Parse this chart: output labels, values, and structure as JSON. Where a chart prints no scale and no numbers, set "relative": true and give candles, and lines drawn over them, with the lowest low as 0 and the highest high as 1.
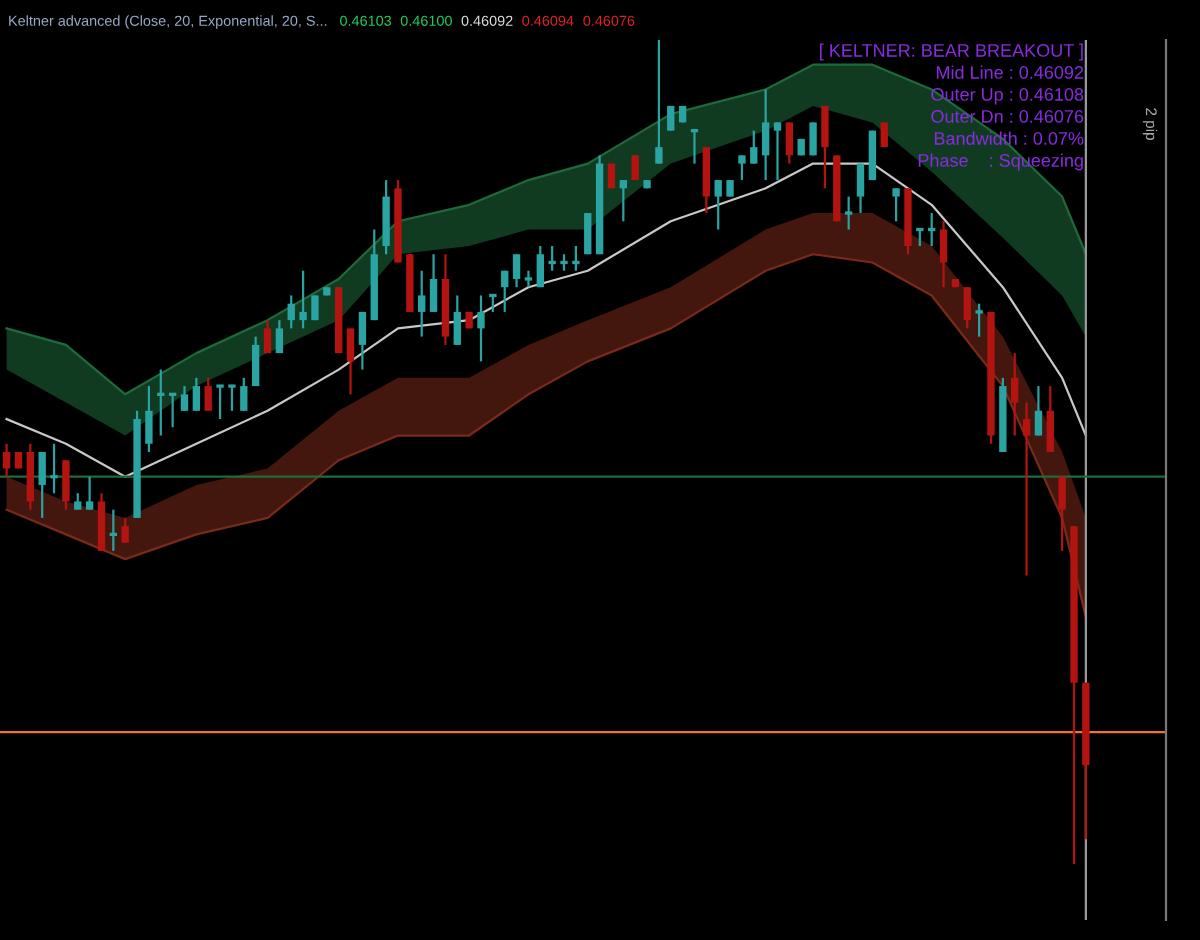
{
  "chart_data": {
    "type": "candlestick",
    "relative": true,
    "title": "Keltner advanced (Close, 20, Exponential, 20, S...",
    "annotations": [
      "0.46103",
      "0.46100",
      "0.46092",
      "0.46094",
      "0.46076",
      "[ KELTNER: BEAR BREAKOUT ]",
      "Mid Line : 0.46092",
      "Outer Up : 0.46108",
      "Outer Dn : 0.46076",
      "Bandwidth : 0.07%",
      "Phase    : Squeezing",
      "2 pip"
    ],
    "categories": [
      null,
      null,
      null,
      null,
      null,
      null,
      null,
      null,
      null,
      null,
      null,
      null,
      null,
      null,
      null,
      null,
      null,
      null,
      null,
      null,
      null,
      null,
      null,
      null,
      null,
      null,
      null,
      null,
      null,
      null,
      null,
      null,
      null,
      null,
      null,
      null,
      null,
      null,
      null,
      null,
      null,
      null,
      null,
      null,
      null,
      null,
      null,
      null,
      null,
      null,
      null,
      null,
      null,
      null,
      null,
      null,
      null,
      null,
      null,
      null,
      null,
      null,
      null,
      null,
      null,
      null,
      null,
      null,
      null,
      null,
      null,
      null,
      null,
      null,
      null,
      null,
      null,
      null,
      null,
      null,
      null,
      null,
      null,
      null,
      null,
      null,
      null,
      null,
      null,
      null,
      null,
      null
    ],
    "ohlc": [
      [
        0.5,
        0.51,
        0.47,
        0.48
      ],
      [
        0.5,
        0.5,
        0.48,
        0.48
      ],
      [
        0.5,
        0.51,
        0.43,
        0.44
      ],
      [
        0.46,
        0.5,
        0.42,
        0.5
      ],
      [
        0.47,
        0.51,
        0.45,
        0.47
      ],
      [
        0.49,
        0.49,
        0.43,
        0.44
      ],
      [
        0.43,
        0.45,
        0.43,
        0.44
      ],
      [
        0.43,
        0.47,
        0.43,
        0.44
      ],
      [
        0.44,
        0.45,
        0.38,
        0.38
      ],
      [
        0.4,
        0.43,
        0.38,
        0.4
      ],
      [
        0.41,
        0.42,
        0.39,
        0.39
      ],
      [
        0.42,
        0.55,
        0.42,
        0.54
      ],
      [
        0.51,
        0.58,
        0.5,
        0.55
      ],
      [
        0.57,
        0.6,
        0.52,
        0.57
      ],
      [
        0.57,
        0.57,
        0.53,
        0.57
      ],
      [
        0.55,
        0.58,
        0.55,
        0.57
      ],
      [
        0.55,
        0.59,
        0.55,
        0.58
      ],
      [
        0.58,
        0.59,
        0.55,
        0.55
      ],
      [
        0.58,
        0.58,
        0.54,
        0.58
      ],
      [
        0.58,
        0.58,
        0.55,
        0.58
      ],
      [
        0.55,
        0.59,
        0.55,
        0.58
      ],
      [
        0.58,
        0.64,
        0.58,
        0.63
      ],
      [
        0.65,
        0.66,
        0.62,
        0.62
      ],
      [
        0.62,
        0.66,
        0.62,
        0.65
      ],
      [
        0.66,
        0.69,
        0.65,
        0.68
      ],
      [
        0.66,
        0.72,
        0.65,
        0.67
      ],
      [
        0.66,
        0.69,
        0.66,
        0.69
      ],
      [
        0.69,
        0.7,
        0.69,
        0.7
      ],
      [
        0.7,
        0.7,
        0.62,
        0.62
      ],
      [
        0.65,
        0.65,
        0.57,
        0.61
      ],
      [
        0.63,
        0.67,
        0.6,
        0.67
      ],
      [
        0.66,
        0.77,
        0.66,
        0.74
      ],
      [
        0.75,
        0.83,
        0.74,
        0.81
      ],
      [
        0.82,
        0.83,
        0.73,
        0.73
      ],
      [
        0.74,
        0.74,
        0.67,
        0.67
      ],
      [
        0.67,
        0.72,
        0.64,
        0.69
      ],
      [
        0.67,
        0.74,
        0.67,
        0.71
      ],
      [
        0.71,
        0.74,
        0.63,
        0.64
      ],
      [
        0.63,
        0.69,
        0.63,
        0.67
      ],
      [
        0.67,
        0.67,
        0.65,
        0.65
      ],
      [
        0.65,
        0.69,
        0.61,
        0.67
      ],
      [
        0.69,
        0.69,
        0.67,
        0.69
      ],
      [
        0.7,
        0.72,
        0.67,
        0.72
      ],
      [
        0.71,
        0.74,
        0.7,
        0.74
      ],
      [
        0.71,
        0.72,
        0.7,
        0.71
      ],
      [
        0.7,
        0.75,
        0.7,
        0.74
      ],
      [
        0.73,
        0.75,
        0.72,
        0.73
      ],
      [
        0.73,
        0.74,
        0.72,
        0.73
      ],
      [
        0.73,
        0.75,
        0.72,
        0.73
      ],
      [
        0.74,
        0.79,
        0.74,
        0.79
      ],
      [
        0.74,
        0.86,
        0.74,
        0.85
      ],
      [
        0.85,
        0.85,
        0.82,
        0.82
      ],
      [
        0.82,
        0.83,
        0.78,
        0.83
      ],
      [
        0.86,
        0.86,
        0.83,
        0.83
      ],
      [
        0.82,
        0.83,
        0.82,
        0.83
      ],
      [
        0.85,
        1.0,
        0.85,
        0.87
      ],
      [
        0.89,
        0.92,
        0.89,
        0.92
      ],
      [
        0.9,
        0.92,
        0.9,
        0.92
      ],
      [
        0.89,
        0.89,
        0.85,
        0.89
      ],
      [
        0.87,
        0.87,
        0.79,
        0.81
      ],
      [
        0.81,
        0.83,
        0.77,
        0.83
      ],
      [
        0.81,
        0.83,
        0.81,
        0.83
      ],
      [
        0.85,
        0.86,
        0.83,
        0.86
      ],
      [
        0.85,
        0.89,
        0.85,
        0.87
      ],
      [
        0.86,
        0.94,
        0.83,
        0.9
      ],
      [
        0.89,
        0.9,
        0.83,
        0.9
      ],
      [
        0.9,
        0.9,
        0.85,
        0.86
      ],
      [
        0.86,
        0.88,
        0.86,
        0.88
      ],
      [
        0.86,
        0.9,
        0.86,
        0.9
      ],
      [
        0.92,
        0.92,
        0.82,
        0.87
      ],
      [
        0.86,
        0.86,
        0.78,
        0.78
      ],
      [
        0.79,
        0.81,
        0.77,
        0.79
      ],
      [
        0.81,
        0.85,
        0.79,
        0.85
      ],
      [
        0.83,
        0.89,
        0.83,
        0.89
      ],
      [
        0.9,
        0.9,
        0.87,
        0.87
      ],
      [
        0.81,
        0.82,
        0.78,
        0.82
      ],
      [
        0.82,
        0.82,
        0.74,
        0.75
      ],
      [
        0.77,
        0.77,
        0.75,
        0.77
      ],
      [
        0.77,
        0.79,
        0.75,
        0.77
      ],
      [
        0.77,
        0.78,
        0.7,
        0.73
      ],
      [
        0.71,
        0.71,
        0.7,
        0.7
      ],
      [
        0.7,
        0.7,
        0.65,
        0.66
      ],
      [
        0.67,
        0.68,
        0.64,
        0.67
      ],
      [
        0.67,
        0.67,
        0.51,
        0.52
      ],
      [
        0.5,
        0.59,
        0.5,
        0.58
      ],
      [
        0.59,
        0.62,
        0.52,
        0.56
      ],
      [
        0.54,
        0.56,
        0.35,
        0.52
      ],
      [
        0.52,
        0.58,
        0.52,
        0.55
      ],
      [
        0.55,
        0.58,
        0.5,
        0.5
      ],
      [
        0.47,
        0.47,
        0.38,
        0.43
      ],
      [
        0.41,
        0.41,
        0.0,
        0.22
      ],
      [
        0.22,
        0.22,
        0.03,
        0.12
      ]
    ],
    "colors": [
      "#b3140f",
      "#b3140f",
      "#b3140f",
      "#2aa3a3",
      "#2aa3a3",
      "#b3140f",
      "#2aa3a3",
      "#2aa3a3",
      "#b3140f",
      "#2aa3a3",
      "#b3140f",
      "#2aa3a3",
      "#2aa3a3",
      "#2aa3a3",
      "#2aa3a3",
      "#2aa3a3",
      "#2aa3a3",
      "#b3140f",
      "#2aa3a3",
      "#2aa3a3",
      "#2aa3a3",
      "#2aa3a3",
      "#b3140f",
      "#2aa3a3",
      "#2aa3a3",
      "#2aa3a3",
      "#2aa3a3",
      "#2aa3a3",
      "#b3140f",
      "#b3140f",
      "#2aa3a3",
      "#2aa3a3",
      "#2aa3a3",
      "#b3140f",
      "#b3140f",
      "#2aa3a3",
      "#2aa3a3",
      "#b3140f",
      "#2aa3a3",
      "#b3140f",
      "#2aa3a3",
      "#2aa3a3",
      "#2aa3a3",
      "#2aa3a3",
      "#2aa3a3",
      "#2aa3a3",
      "#2aa3a3",
      "#2aa3a3",
      "#2aa3a3",
      "#2aa3a3",
      "#2aa3a3",
      "#b3140f",
      "#2aa3a3",
      "#b3140f",
      "#2aa3a3",
      "#2aa3a3",
      "#2aa3a3",
      "#2aa3a3",
      "#2aa3a3",
      "#b3140f",
      "#2aa3a3",
      "#2aa3a3",
      "#2aa3a3",
      "#2aa3a3",
      "#2aa3a3",
      "#2aa3a3",
      "#b3140f",
      "#2aa3a3",
      "#2aa3a3",
      "#b3140f",
      "#b3140f",
      "#2aa3a3",
      "#2aa3a3",
      "#2aa3a3",
      "#b3140f",
      "#2aa3a3",
      "#b3140f",
      "#2aa3a3",
      "#2aa3a3",
      "#b3140f",
      "#b3140f",
      "#b3140f",
      "#2aa3a3",
      "#b3140f",
      "#2aa3a3",
      "#b3140f",
      "#b3140f",
      "#2aa3a3",
      "#b3140f",
      "#b3140f",
      "#b3140f",
      "#b3140f"
    ],
    "series": [
      {
        "type": "line",
        "color": "#1d6b3a",
        "values": [
          0.65,
          null,
          null,
          null,
          null,
          0.63,
          null,
          null,
          null,
          null,
          0.57,
          null,
          null,
          null,
          null,
          null,
          0.62,
          null,
          null,
          null,
          null,
          null,
          0.66,
          null,
          null,
          null,
          null,
          null,
          0.71,
          null,
          null,
          null,
          null,
          0.78,
          null,
          null,
          null,
          null,
          null,
          0.8,
          null,
          null,
          null,
          null,
          0.83,
          null,
          null,
          null,
          null,
          0.85,
          null,
          null,
          null,
          null,
          null,
          null,
          0.91,
          null,
          null,
          null,
          null,
          null,
          null,
          null,
          0.94,
          null,
          null,
          null,
          0.97,
          null,
          null,
          null,
          null,
          0.97,
          null,
          null,
          null,
          null,
          0.94,
          null,
          null,
          null,
          null,
          null,
          0.88,
          null,
          null,
          null,
          null,
          0.81,
          null,
          0.74
        ],
        "lower": [
          0.6,
          null,
          null,
          null,
          null,
          0.56,
          null,
          null,
          null,
          null,
          0.52,
          null,
          null,
          null,
          null,
          null,
          0.58,
          null,
          null,
          null,
          null,
          null,
          0.62,
          null,
          null,
          null,
          null,
          null,
          0.66,
          null,
          null,
          null,
          null,
          0.74,
          null,
          null,
          null,
          null,
          null,
          0.75,
          null,
          null,
          null,
          null,
          0.77,
          null,
          null,
          null,
          null,
          0.77,
          null,
          null,
          null,
          null,
          null,
          null,
          0.85,
          null,
          null,
          null,
          null,
          null,
          null,
          null,
          0.89,
          null,
          null,
          null,
          0.92,
          null,
          null,
          null,
          null,
          0.9,
          null,
          null,
          null,
          null,
          0.84,
          null,
          null,
          null,
          null,
          null,
          0.76,
          null,
          null,
          null,
          null,
          0.69,
          null,
          0.64
        ],
        "upper": [
          0.65,
          null,
          null,
          null,
          null,
          0.63,
          null,
          null,
          null,
          null,
          0.57,
          null,
          null,
          null,
          null,
          null,
          0.62,
          null,
          null,
          null,
          null,
          null,
          0.66,
          null,
          null,
          null,
          null,
          null,
          0.71,
          null,
          null,
          null,
          null,
          0.78,
          null,
          null,
          null,
          null,
          null,
          0.8,
          null,
          null,
          null,
          null,
          0.83,
          null,
          null,
          null,
          null,
          0.85,
          null,
          null,
          null,
          null,
          null,
          null,
          0.91,
          null,
          null,
          null,
          null,
          null,
          null,
          null,
          0.94,
          null,
          null,
          null,
          0.97,
          null,
          null,
          null,
          null,
          0.97,
          null,
          null,
          null,
          null,
          0.94,
          null,
          null,
          null,
          null,
          null,
          0.88,
          null,
          null,
          null,
          null,
          0.81,
          null,
          0.74
        ]
      },
      {
        "type": "line",
        "color": "#c8c8c8",
        "values": [
          0.54,
          null,
          null,
          null,
          null,
          0.51,
          null,
          null,
          null,
          null,
          0.47,
          null,
          null,
          null,
          null,
          null,
          0.51,
          null,
          null,
          null,
          null,
          null,
          0.55,
          null,
          null,
          null,
          null,
          null,
          0.6,
          null,
          null,
          null,
          null,
          0.65,
          null,
          null,
          null,
          null,
          null,
          0.66,
          null,
          null,
          null,
          null,
          0.7,
          null,
          null,
          null,
          null,
          0.72,
          null,
          null,
          null,
          null,
          null,
          null,
          0.78,
          null,
          null,
          null,
          null,
          null,
          null,
          null,
          0.82,
          null,
          null,
          null,
          0.85,
          null,
          null,
          null,
          null,
          0.85,
          null,
          null,
          null,
          null,
          0.8,
          null,
          null,
          null,
          null,
          null,
          0.7,
          null,
          null,
          null,
          null,
          0.59,
          null,
          0.52
        ]
      },
      {
        "type": "line",
        "color": "#7a2a1a",
        "values": [
          0.43,
          null,
          null,
          null,
          null,
          0.4,
          null,
          null,
          null,
          null,
          0.37,
          null,
          null,
          null,
          null,
          null,
          0.4,
          null,
          null,
          null,
          null,
          null,
          0.42,
          null,
          null,
          null,
          null,
          null,
          0.49,
          null,
          null,
          null,
          null,
          0.52,
          null,
          null,
          null,
          null,
          null,
          0.52,
          null,
          null,
          null,
          null,
          0.57,
          null,
          null,
          null,
          null,
          0.61,
          null,
          null,
          null,
          null,
          null,
          null,
          0.65,
          null,
          null,
          null,
          null,
          null,
          null,
          null,
          0.72,
          null,
          null,
          null,
          0.74,
          null,
          null,
          null,
          null,
          0.73,
          null,
          null,
          null,
          null,
          0.69,
          null,
          null,
          null,
          null,
          null,
          0.58,
          null,
          null,
          null,
          null,
          0.42,
          null,
          0.3
        ],
        "lower": [
          0.43,
          null,
          null,
          null,
          null,
          0.4,
          null,
          null,
          null,
          null,
          0.37,
          null,
          null,
          null,
          null,
          null,
          0.4,
          null,
          null,
          null,
          null,
          null,
          0.42,
          null,
          null,
          null,
          null,
          null,
          0.49,
          null,
          null,
          null,
          null,
          0.52,
          null,
          null,
          null,
          null,
          null,
          0.52,
          null,
          null,
          null,
          null,
          0.57,
          null,
          null,
          null,
          null,
          0.61,
          null,
          null,
          null,
          null,
          null,
          null,
          0.65,
          null,
          null,
          null,
          null,
          null,
          null,
          null,
          0.72,
          null,
          null,
          null,
          0.74,
          null,
          null,
          null,
          null,
          0.73,
          null,
          null,
          null,
          null,
          0.69,
          null,
          null,
          null,
          null,
          null,
          0.58,
          null,
          null,
          null,
          null,
          0.42,
          null,
          0.3
        ],
        "upper": [
          0.47,
          null,
          null,
          null,
          null,
          0.44,
          null,
          null,
          null,
          null,
          0.42,
          null,
          null,
          null,
          null,
          null,
          0.46,
          null,
          null,
          null,
          null,
          null,
          0.48,
          null,
          null,
          null,
          null,
          null,
          0.55,
          null,
          null,
          null,
          null,
          0.59,
          null,
          null,
          null,
          null,
          null,
          0.59,
          null,
          null,
          null,
          null,
          0.63,
          null,
          null,
          null,
          null,
          0.66,
          null,
          null,
          null,
          null,
          null,
          null,
          0.7,
          null,
          null,
          null,
          null,
          null,
          null,
          null,
          0.77,
          null,
          null,
          null,
          0.79,
          null,
          null,
          null,
          null,
          0.79,
          null,
          null,
          null,
          null,
          0.75,
          null,
          null,
          null,
          null,
          null,
          0.64,
          null,
          null,
          null,
          null,
          0.5,
          null,
          0.42
        ]
      }
    ],
    "ref_lines": [
      {
        "axis": "y",
        "value": 0.47,
        "color": "#1f6b3a"
      },
      {
        "axis": "y",
        "value": 0.16,
        "color": "#f07040"
      }
    ]
  }
}
